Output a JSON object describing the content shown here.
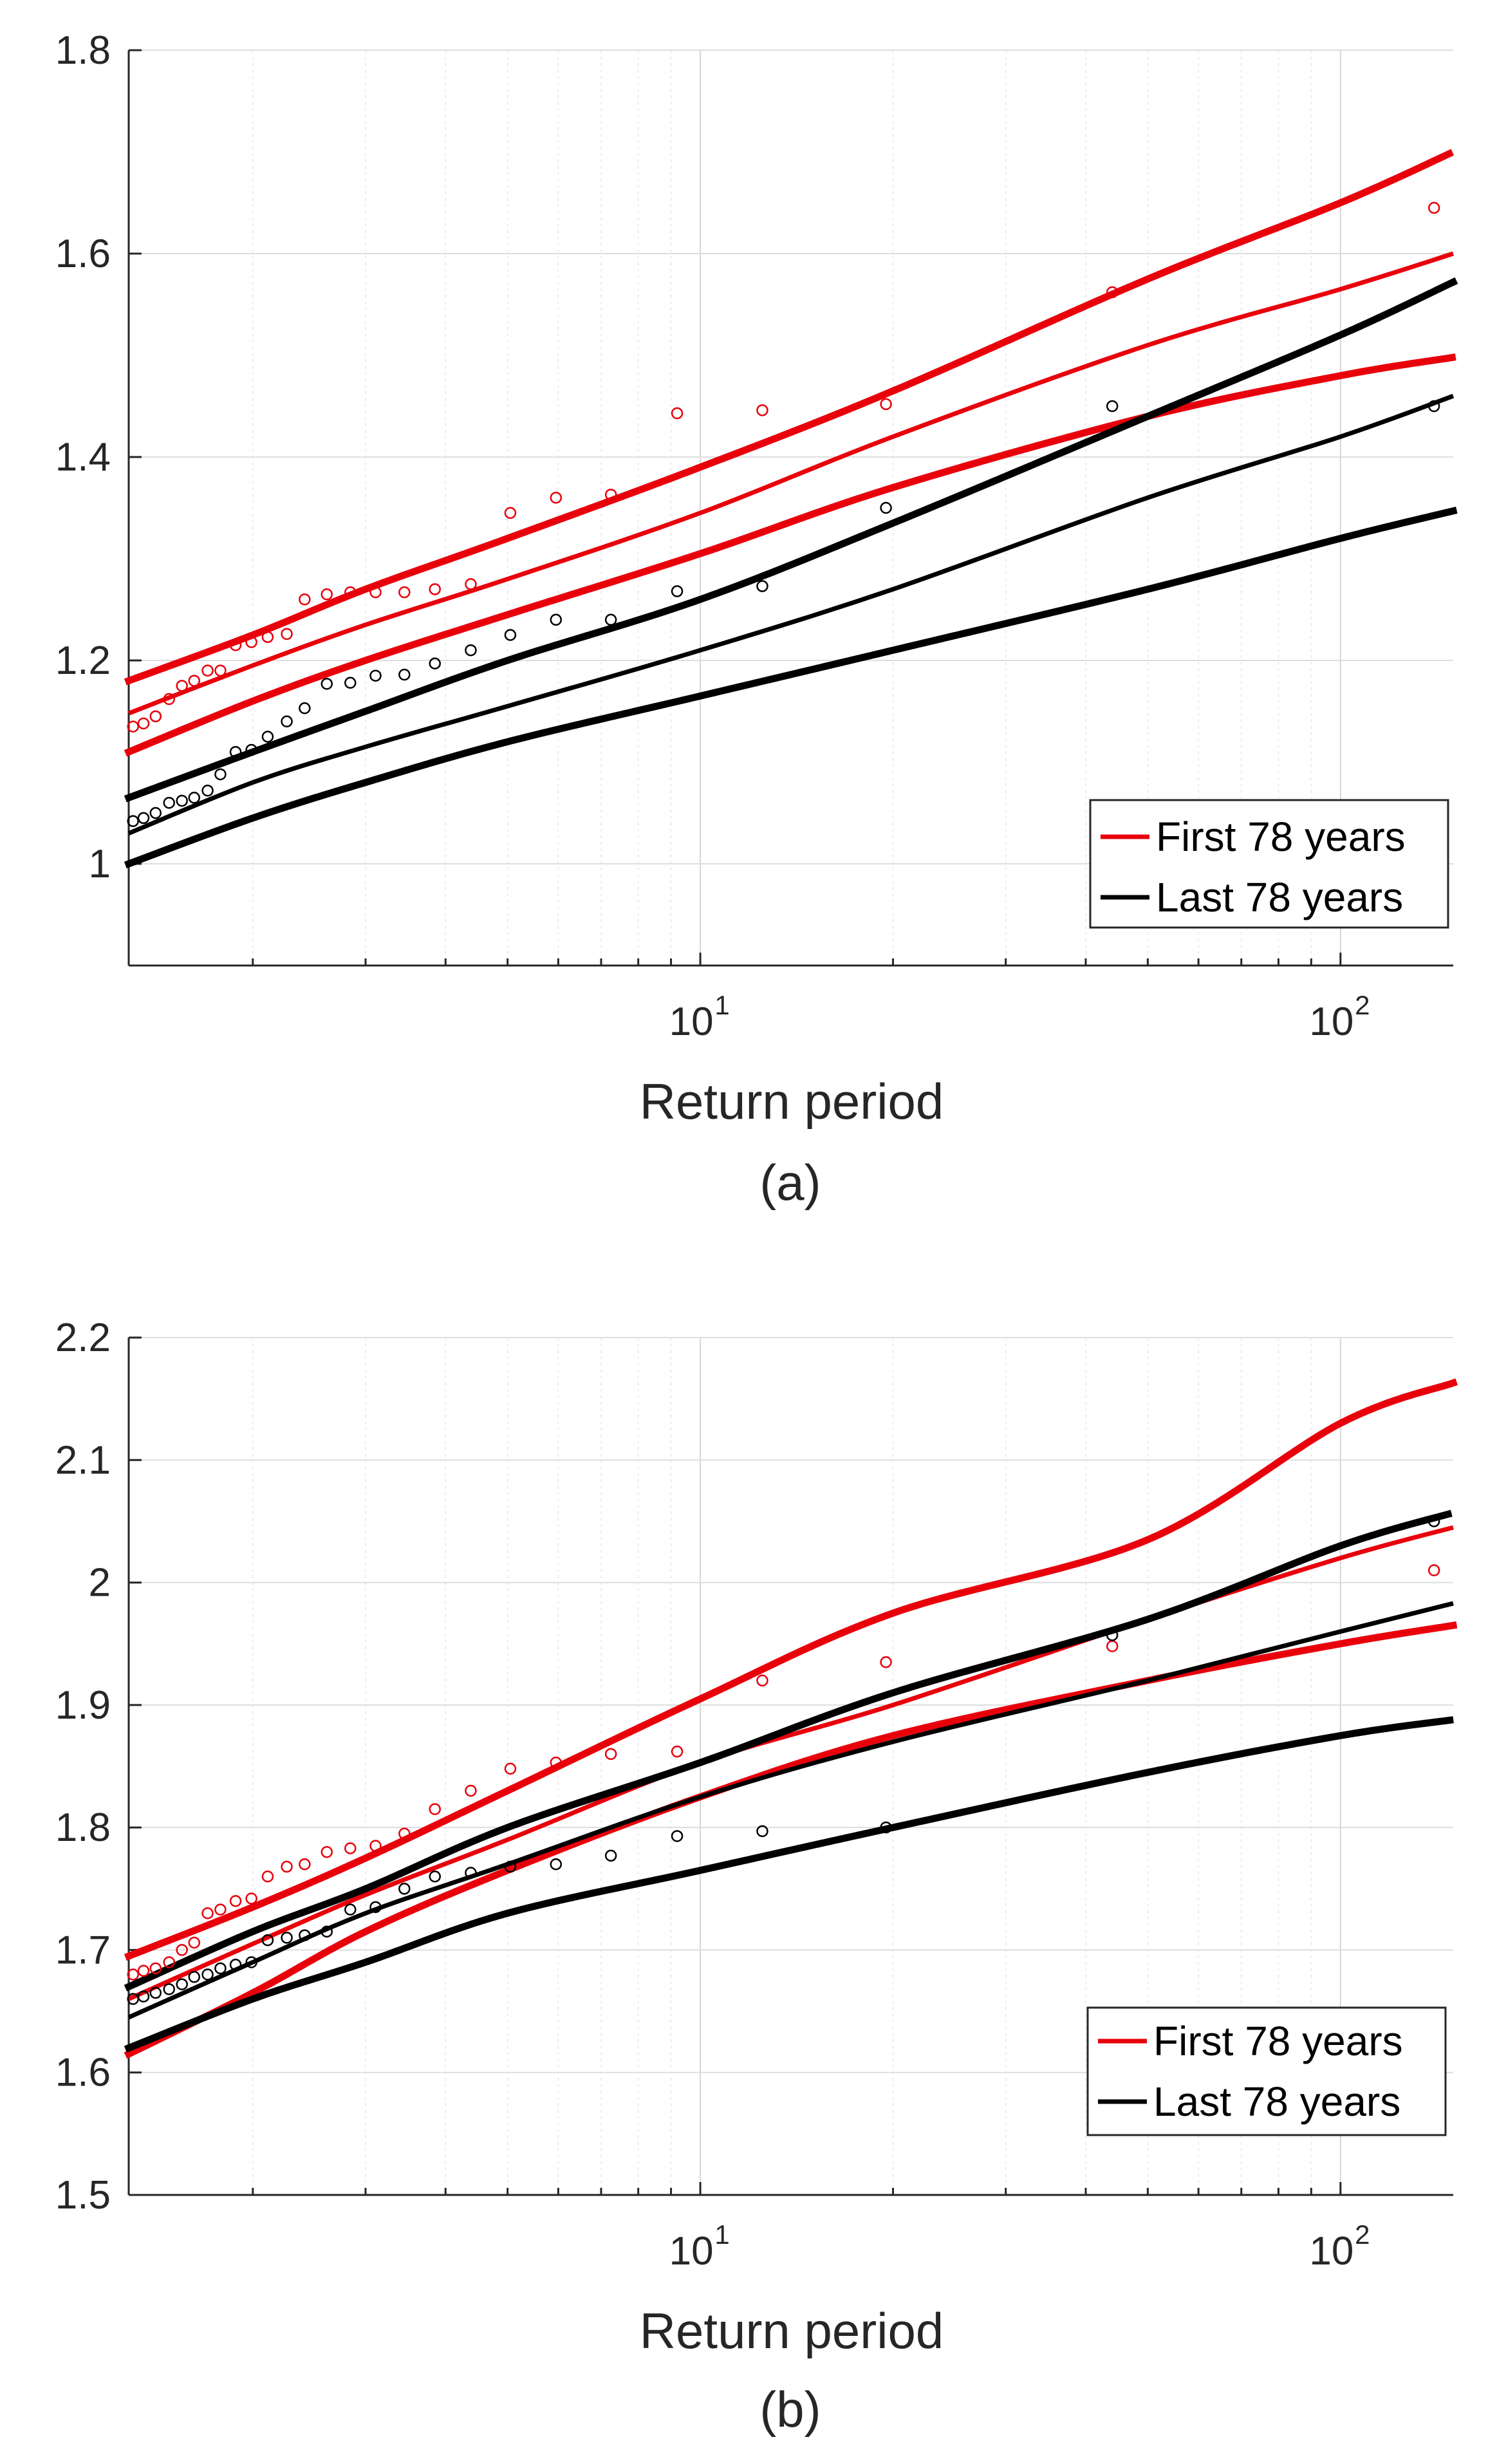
{
  "chart_data": [
    {
      "id": "a",
      "type": "scatter",
      "caption": "(a)",
      "xlabel": "Return period",
      "ylabel": "",
      "xscale": "log",
      "xlim": [
        1.28,
        150
      ],
      "ylim": [
        0.9,
        1.8
      ],
      "yticks": [
        1,
        1.2,
        1.4,
        1.6,
        1.8
      ],
      "ytick_labels": [
        "1",
        "1.2",
        "1.4",
        "1.6",
        "1.8"
      ],
      "xticks": [
        {
          "value": 10,
          "base": "10",
          "exp": "1"
        },
        {
          "value": 100,
          "base": "10",
          "exp": "2"
        }
      ],
      "grid": true,
      "legend_position": "bottom-right",
      "legend": [
        {
          "label": "First 78 years",
          "color": "#e8000b"
        },
        {
          "label": "Last 78 years",
          "color": "#000000"
        }
      ],
      "series": [
        {
          "name": "First 78 years fit",
          "role": "fit",
          "color": "#e8000b",
          "style": "solid",
          "x": [
            1.28,
            2,
            3,
            5,
            10,
            20,
            50,
            100,
            150
          ],
          "y": [
            1.148,
            1.195,
            1.235,
            1.28,
            1.345,
            1.42,
            1.51,
            1.565,
            1.6
          ]
        },
        {
          "name": "First 78 years upper bound",
          "role": "ci",
          "color": "#e8000b",
          "style": "dotted",
          "x": [
            1.28,
            2,
            3,
            5,
            10,
            20,
            50,
            100,
            150
          ],
          "y": [
            1.18,
            1.225,
            1.27,
            1.32,
            1.39,
            1.465,
            1.575,
            1.65,
            1.7
          ]
        },
        {
          "name": "First 78 years lower bound",
          "role": "ci",
          "color": "#e8000b",
          "style": "dotted",
          "x": [
            1.28,
            2,
            3,
            5,
            10,
            20,
            50,
            100,
            150
          ],
          "y": [
            1.11,
            1.16,
            1.2,
            1.245,
            1.305,
            1.37,
            1.44,
            1.48,
            1.498
          ]
        },
        {
          "name": "Last 78 years fit",
          "role": "fit",
          "color": "#000000",
          "style": "solid",
          "x": [
            1.28,
            2,
            3,
            5,
            10,
            20,
            50,
            100,
            150
          ],
          "y": [
            1.03,
            1.08,
            1.115,
            1.155,
            1.21,
            1.27,
            1.36,
            1.42,
            1.46
          ]
        },
        {
          "name": "Last 78 years upper bound",
          "role": "ci",
          "color": "#000000",
          "style": "dotted",
          "x": [
            1.28,
            2,
            3,
            5,
            10,
            20,
            50,
            100,
            150
          ],
          "y": [
            1.065,
            1.11,
            1.15,
            1.2,
            1.26,
            1.335,
            1.44,
            1.52,
            1.572
          ]
        },
        {
          "name": "Last 78 years lower bound",
          "role": "ci",
          "color": "#000000",
          "style": "dotted",
          "x": [
            1.28,
            2,
            3,
            5,
            10,
            20,
            50,
            100,
            150
          ],
          "y": [
            1.0,
            1.045,
            1.08,
            1.12,
            1.165,
            1.21,
            1.27,
            1.32,
            1.347
          ]
        },
        {
          "name": "First 78 years observed",
          "role": "points",
          "color": "#e8000b",
          "x": [
            1.3,
            1.35,
            1.41,
            1.48,
            1.55,
            1.62,
            1.7,
            1.78,
            1.88,
            1.99,
            2.11,
            2.26,
            2.41,
            2.61,
            2.84,
            3.11,
            3.45,
            3.85,
            4.38,
            5.05,
            5.95,
            7.25,
            9.2,
            12.5,
            19.5,
            44,
            140
          ],
          "y": [
            1.135,
            1.138,
            1.145,
            1.162,
            1.175,
            1.18,
            1.19,
            1.19,
            1.215,
            1.218,
            1.223,
            1.226,
            1.26,
            1.265,
            1.267,
            1.267,
            1.267,
            1.27,
            1.275,
            1.345,
            1.36,
            1.363,
            1.443,
            1.446,
            1.452,
            1.562,
            1.645
          ]
        },
        {
          "name": "Last 78 years observed",
          "role": "points",
          "color": "#000000",
          "x": [
            1.3,
            1.35,
            1.41,
            1.48,
            1.55,
            1.62,
            1.7,
            1.78,
            1.88,
            1.99,
            2.11,
            2.26,
            2.41,
            2.61,
            2.84,
            3.11,
            3.45,
            3.85,
            4.38,
            5.05,
            5.95,
            7.25,
            9.2,
            12.5,
            19.5,
            44,
            140
          ],
          "y": [
            1.042,
            1.045,
            1.05,
            1.06,
            1.062,
            1.065,
            1.072,
            1.088,
            1.11,
            1.112,
            1.125,
            1.14,
            1.153,
            1.177,
            1.178,
            1.185,
            1.186,
            1.197,
            1.21,
            1.225,
            1.24,
            1.24,
            1.268,
            1.273,
            1.35,
            1.45,
            1.45
          ]
        }
      ]
    },
    {
      "id": "b",
      "type": "scatter",
      "caption": "(b)",
      "xlabel": "Return period",
      "ylabel": "",
      "xscale": "log",
      "xlim": [
        1.28,
        150
      ],
      "ylim": [
        1.5,
        2.2
      ],
      "yticks": [
        1.5,
        1.6,
        1.7,
        1.8,
        1.9,
        2,
        2.1,
        2.2
      ],
      "ytick_labels": [
        "1.5",
        "1.6",
        "1.7",
        "1.8",
        "1.9",
        "2",
        "2.1",
        "2.2"
      ],
      "xticks": [
        {
          "value": 10,
          "base": "10",
          "exp": "1"
        },
        {
          "value": 100,
          "base": "10",
          "exp": "2"
        }
      ],
      "grid": true,
      "legend_position": "bottom-right",
      "legend": [
        {
          "label": "First 78 years",
          "color": "#e8000b"
        },
        {
          "label": "Last 78 years",
          "color": "#000000"
        }
      ],
      "series": [
        {
          "name": "First 78 years fit",
          "role": "fit",
          "color": "#e8000b",
          "style": "solid",
          "x": [
            1.28,
            2,
            3,
            5,
            10,
            20,
            50,
            100,
            150
          ],
          "y": [
            1.66,
            1.705,
            1.745,
            1.79,
            1.853,
            1.9,
            1.97,
            2.02,
            2.045
          ]
        },
        {
          "name": "First 78 years upper bound",
          "role": "ci",
          "color": "#e8000b",
          "style": "dotted",
          "x": [
            1.28,
            2,
            3,
            5,
            10,
            20,
            50,
            100,
            150
          ],
          "y": [
            1.695,
            1.735,
            1.775,
            1.83,
            1.905,
            1.975,
            2.035,
            2.13,
            2.163
          ]
        },
        {
          "name": "First 78 years lower bound",
          "role": "ci",
          "color": "#e8000b",
          "style": "dotted",
          "x": [
            1.28,
            2,
            3,
            5,
            10,
            20,
            50,
            100,
            150
          ],
          "y": [
            1.615,
            1.665,
            1.715,
            1.765,
            1.825,
            1.875,
            1.92,
            1.95,
            1.965
          ]
        },
        {
          "name": "Last 78 years fit",
          "role": "fit",
          "color": "#000000",
          "style": "solid",
          "x": [
            1.28,
            2,
            3,
            5,
            10,
            20,
            50,
            100,
            150
          ],
          "y": [
            1.645,
            1.69,
            1.73,
            1.77,
            1.825,
            1.87,
            1.92,
            1.96,
            1.983
          ]
        },
        {
          "name": "Last 78 years upper bound",
          "role": "ci",
          "color": "#000000",
          "style": "dotted",
          "x": [
            1.28,
            2,
            3,
            5,
            10,
            20,
            50,
            100,
            150
          ],
          "y": [
            1.67,
            1.715,
            1.75,
            1.8,
            1.853,
            1.91,
            1.97,
            2.03,
            2.057
          ]
        },
        {
          "name": "Last 78 years lower bound",
          "role": "ci",
          "color": "#000000",
          "style": "dotted",
          "x": [
            1.28,
            2,
            3,
            5,
            10,
            20,
            50,
            100,
            150
          ],
          "y": [
            1.62,
            1.66,
            1.69,
            1.73,
            1.765,
            1.8,
            1.845,
            1.875,
            1.888
          ]
        },
        {
          "name": "First 78 years observed",
          "role": "points",
          "color": "#e8000b",
          "x": [
            1.3,
            1.35,
            1.41,
            1.48,
            1.55,
            1.62,
            1.7,
            1.78,
            1.88,
            1.99,
            2.11,
            2.26,
            2.41,
            2.61,
            2.84,
            3.11,
            3.45,
            3.85,
            4.38,
            5.05,
            5.95,
            7.25,
            9.2,
            12.5,
            19.5,
            44,
            140
          ],
          "y": [
            1.68,
            1.683,
            1.685,
            1.69,
            1.7,
            1.706,
            1.73,
            1.733,
            1.74,
            1.742,
            1.76,
            1.768,
            1.77,
            1.78,
            1.783,
            1.785,
            1.795,
            1.815,
            1.83,
            1.848,
            1.853,
            1.86,
            1.862,
            1.92,
            1.935,
            1.948,
            2.01
          ]
        },
        {
          "name": "Last 78 years observed",
          "role": "points",
          "color": "#000000",
          "x": [
            1.3,
            1.35,
            1.41,
            1.48,
            1.55,
            1.62,
            1.7,
            1.78,
            1.88,
            1.99,
            2.11,
            2.26,
            2.41,
            2.61,
            2.84,
            3.11,
            3.45,
            3.85,
            4.38,
            5.05,
            5.95,
            7.25,
            9.2,
            12.5,
            19.5,
            44,
            140
          ],
          "y": [
            1.66,
            1.662,
            1.665,
            1.668,
            1.672,
            1.678,
            1.68,
            1.685,
            1.688,
            1.69,
            1.708,
            1.71,
            1.712,
            1.715,
            1.733,
            1.735,
            1.75,
            1.76,
            1.763,
            1.768,
            1.77,
            1.777,
            1.793,
            1.797,
            1.8,
            1.957,
            2.05
          ]
        }
      ]
    }
  ]
}
